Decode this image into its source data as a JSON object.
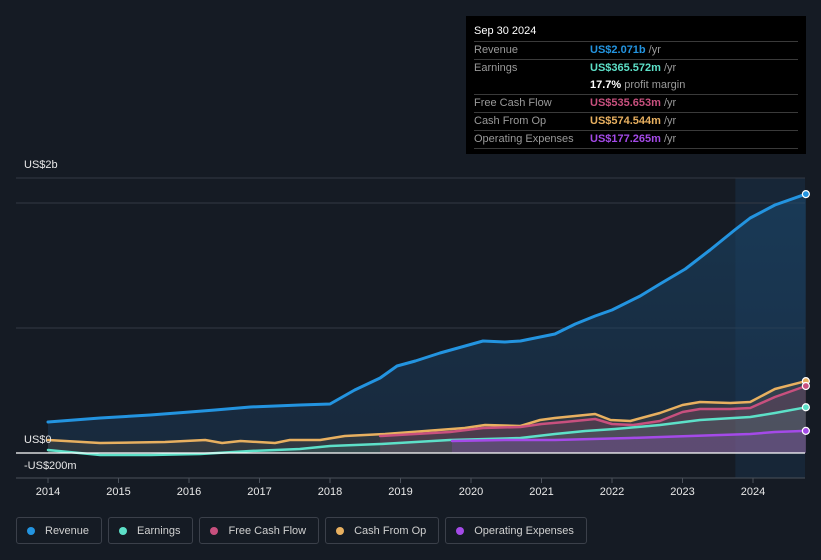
{
  "tooltip": {
    "date": "Sep 30 2024",
    "rows": [
      {
        "label": "Revenue",
        "value": "US$2.071b",
        "unit": "/yr",
        "color": "#2394e0"
      },
      {
        "label": "Earnings",
        "value": "US$365.572m",
        "unit": "/yr",
        "color": "#5de0c8"
      },
      {
        "label": "",
        "value": "17.7%",
        "unit": "profit margin",
        "color": "#ffffff"
      },
      {
        "label": "Free Cash Flow",
        "value": "US$535.653m",
        "unit": "/yr",
        "color": "#c8507e"
      },
      {
        "label": "Cash From Op",
        "value": "US$574.544m",
        "unit": "/yr",
        "color": "#e8b060"
      },
      {
        "label": "Operating Expenses",
        "value": "US$177.265m",
        "unit": "/yr",
        "color": "#a44ae8"
      }
    ]
  },
  "legend": [
    {
      "label": "Revenue",
      "color": "#2394e0"
    },
    {
      "label": "Earnings",
      "color": "#5de0c8"
    },
    {
      "label": "Free Cash Flow",
      "color": "#c8507e"
    },
    {
      "label": "Cash From Op",
      "color": "#e8b060"
    },
    {
      "label": "Operating Expenses",
      "color": "#a44ae8"
    }
  ],
  "chart_data": {
    "type": "area",
    "title": "",
    "xlabel": "",
    "ylabel": "",
    "units": "US$ millions",
    "x_ticks": [
      "2014",
      "2015",
      "2016",
      "2017",
      "2018",
      "2019",
      "2020",
      "2021",
      "2022",
      "2023",
      "2024"
    ],
    "y_tick_labels": [
      {
        "value": 2000,
        "label": "US$2b"
      },
      {
        "value": 0,
        "label": "US$0"
      },
      {
        "value": -200,
        "label": "-US$200m"
      }
    ],
    "gridlines_at": [
      2200,
      2000,
      1000
    ],
    "ylim": [
      -200,
      2200
    ],
    "xlim": [
      2014.0,
      2024.75
    ],
    "highlight_range": [
      2023.75,
      2024.75
    ],
    "grid": true,
    "legend_position": "bottom",
    "series": [
      {
        "name": "Revenue",
        "color": "#2394e0",
        "points": [
          [
            2014.0,
            248
          ],
          [
            2014.74,
            280
          ],
          [
            2015.45,
            304
          ],
          [
            2016.01,
            328
          ],
          [
            2016.37,
            344
          ],
          [
            2016.87,
            368
          ],
          [
            2017.57,
            384
          ],
          [
            2018.0,
            392
          ],
          [
            2018.35,
            504
          ],
          [
            2018.71,
            600
          ],
          [
            2018.95,
            696
          ],
          [
            2019.21,
            736
          ],
          [
            2019.56,
            800
          ],
          [
            2020.17,
            896
          ],
          [
            2020.48,
            888
          ],
          [
            2020.7,
            896
          ],
          [
            2020.98,
            928
          ],
          [
            2021.19,
            952
          ],
          [
            2021.48,
            1032
          ],
          [
            2021.76,
            1096
          ],
          [
            2022.0,
            1144
          ],
          [
            2022.4,
            1256
          ],
          [
            2022.68,
            1352
          ],
          [
            2023.04,
            1472
          ],
          [
            2023.39,
            1624
          ],
          [
            2023.74,
            1784
          ],
          [
            2023.96,
            1880
          ],
          [
            2024.31,
            1984
          ],
          [
            2024.75,
            2071
          ]
        ]
      },
      {
        "name": "Earnings",
        "color": "#5de0c8",
        "points": [
          [
            2014.0,
            24
          ],
          [
            2014.74,
            -16
          ],
          [
            2015.45,
            -16
          ],
          [
            2016.16,
            -8
          ],
          [
            2016.87,
            16
          ],
          [
            2017.57,
            32
          ],
          [
            2018.0,
            56
          ],
          [
            2018.71,
            72
          ],
          [
            2019.7,
            104
          ],
          [
            2020.7,
            120
          ],
          [
            2021.19,
            152
          ],
          [
            2021.62,
            176
          ],
          [
            2022.04,
            192
          ],
          [
            2022.68,
            224
          ],
          [
            2023.25,
            264
          ],
          [
            2023.96,
            288
          ],
          [
            2024.31,
            320
          ],
          [
            2024.75,
            366
          ]
        ]
      },
      {
        "name": "Free Cash Flow",
        "color": "#c8507e",
        "points": [
          [
            2018.71,
            136
          ],
          [
            2019.21,
            152
          ],
          [
            2019.7,
            168
          ],
          [
            2020.17,
            200
          ],
          [
            2020.7,
            208
          ],
          [
            2021.0,
            232
          ],
          [
            2021.33,
            248
          ],
          [
            2021.76,
            272
          ],
          [
            2022.0,
            232
          ],
          [
            2022.3,
            224
          ],
          [
            2022.68,
            256
          ],
          [
            2023.0,
            328
          ],
          [
            2023.25,
            352
          ],
          [
            2023.68,
            352
          ],
          [
            2023.96,
            360
          ],
          [
            2024.31,
            448
          ],
          [
            2024.75,
            536
          ]
        ]
      },
      {
        "name": "Cash From Op",
        "color": "#e8b060",
        "points": [
          [
            2014.0,
            104
          ],
          [
            2014.74,
            80
          ],
          [
            2015.66,
            88
          ],
          [
            2016.23,
            104
          ],
          [
            2016.47,
            80
          ],
          [
            2016.73,
            96
          ],
          [
            2017.22,
            80
          ],
          [
            2017.43,
            104
          ],
          [
            2017.86,
            104
          ],
          [
            2018.21,
            136
          ],
          [
            2018.78,
            152
          ],
          [
            2019.35,
            176
          ],
          [
            2019.91,
            200
          ],
          [
            2020.2,
            224
          ],
          [
            2020.7,
            216
          ],
          [
            2020.98,
            264
          ],
          [
            2021.19,
            280
          ],
          [
            2021.76,
            312
          ],
          [
            2021.98,
            264
          ],
          [
            2022.26,
            256
          ],
          [
            2022.68,
            320
          ],
          [
            2023.0,
            384
          ],
          [
            2023.25,
            408
          ],
          [
            2023.68,
            400
          ],
          [
            2023.96,
            408
          ],
          [
            2024.31,
            512
          ],
          [
            2024.75,
            575
          ]
        ]
      },
      {
        "name": "Operating Expenses",
        "color": "#a44ae8",
        "points": [
          [
            2019.73,
            96
          ],
          [
            2020.48,
            104
          ],
          [
            2021.19,
            104
          ],
          [
            2022.26,
            120
          ],
          [
            2023.11,
            136
          ],
          [
            2023.96,
            152
          ],
          [
            2024.31,
            168
          ],
          [
            2024.75,
            177
          ]
        ]
      }
    ]
  }
}
